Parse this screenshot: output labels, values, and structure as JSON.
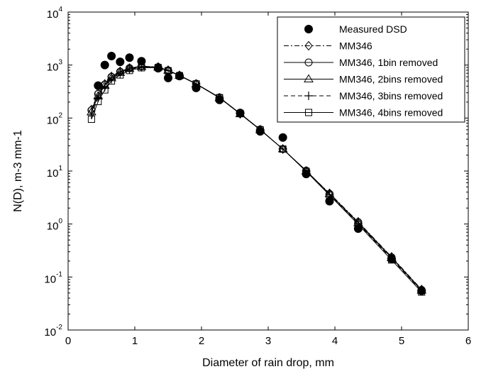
{
  "chart_data": {
    "type": "line",
    "xlabel": "Diameter of rain drop, mm",
    "ylabel": "N(D), m-3 mm-1",
    "xlim": [
      0,
      6
    ],
    "ylim": [
      0.01,
      10000
    ],
    "yscale": "log",
    "grid": false,
    "legend_position": "top-right",
    "x_ticks": [
      "0",
      "1",
      "2",
      "3",
      "4",
      "5",
      "6"
    ],
    "y_ticks": [
      {
        "value": 0.01,
        "base": "10",
        "exp": "-2"
      },
      {
        "value": 0.1,
        "base": "10",
        "exp": "-1"
      },
      {
        "value": 1,
        "base": "10",
        "exp": "0"
      },
      {
        "value": 10,
        "base": "10",
        "exp": "1"
      },
      {
        "value": 100,
        "base": "10",
        "exp": "2"
      },
      {
        "value": 1000,
        "base": "10",
        "exp": "3"
      },
      {
        "value": 10000,
        "base": "10",
        "exp": "4"
      }
    ],
    "series": [
      {
        "name": "Measured DSD",
        "style": "markers",
        "marker": "filled-circle",
        "points": [
          [
            0.45,
            410
          ],
          [
            0.55,
            1000
          ],
          [
            0.65,
            1480
          ],
          [
            0.78,
            1150
          ],
          [
            0.92,
            1380
          ],
          [
            1.1,
            1180
          ],
          [
            1.35,
            870
          ],
          [
            1.5,
            570
          ],
          [
            1.67,
            620
          ],
          [
            1.92,
            370
          ],
          [
            2.27,
            220
          ],
          [
            2.58,
            125
          ],
          [
            2.88,
            56
          ],
          [
            3.22,
            43
          ],
          [
            3.57,
            8.8
          ],
          [
            3.92,
            2.7
          ],
          [
            4.35,
            0.82
          ],
          [
            4.85,
            0.22
          ],
          [
            5.3,
            0.055
          ]
        ]
      },
      {
        "name": "MM346",
        "style": "dash-dot",
        "marker": "diamond",
        "points": [
          [
            0.35,
            145
          ],
          [
            0.45,
            295
          ],
          [
            0.55,
            440
          ],
          [
            0.65,
            610
          ],
          [
            0.78,
            760
          ],
          [
            0.92,
            880
          ],
          [
            1.1,
            950
          ],
          [
            1.35,
            920
          ],
          [
            1.5,
            800
          ],
          [
            1.67,
            640
          ],
          [
            1.92,
            440
          ],
          [
            2.27,
            240
          ],
          [
            2.58,
            120
          ],
          [
            2.88,
            60
          ],
          [
            3.22,
            26
          ],
          [
            3.57,
            10
          ],
          [
            3.92,
            3.8
          ],
          [
            4.35,
            1.1
          ],
          [
            4.85,
            0.24
          ],
          [
            5.3,
            0.058
          ]
        ]
      },
      {
        "name": "MM346, 1bin removed",
        "style": "solid",
        "marker": "circle",
        "points": [
          [
            0.35,
            140
          ],
          [
            0.45,
            285
          ],
          [
            0.55,
            430
          ],
          [
            0.65,
            600
          ],
          [
            0.78,
            750
          ],
          [
            0.92,
            875
          ],
          [
            1.1,
            945
          ],
          [
            1.35,
            915
          ],
          [
            1.5,
            795
          ],
          [
            1.67,
            640
          ],
          [
            1.92,
            445
          ],
          [
            2.27,
            245
          ],
          [
            2.58,
            122
          ],
          [
            2.88,
            61
          ],
          [
            3.22,
            26
          ],
          [
            3.57,
            10.2
          ],
          [
            3.92,
            3.7
          ],
          [
            4.35,
            1.08
          ],
          [
            4.85,
            0.235
          ],
          [
            5.3,
            0.057
          ]
        ]
      },
      {
        "name": "MM346, 2bins removed",
        "style": "solid",
        "marker": "triangle",
        "points": [
          [
            0.35,
            130
          ],
          [
            0.45,
            260
          ],
          [
            0.55,
            410
          ],
          [
            0.65,
            570
          ],
          [
            0.78,
            720
          ],
          [
            0.92,
            850
          ],
          [
            1.1,
            930
          ],
          [
            1.35,
            910
          ],
          [
            1.5,
            790
          ],
          [
            1.67,
            635
          ],
          [
            1.92,
            440
          ],
          [
            2.27,
            240
          ],
          [
            2.58,
            120
          ],
          [
            2.88,
            60
          ],
          [
            3.22,
            26
          ],
          [
            3.57,
            10
          ],
          [
            3.92,
            3.7
          ],
          [
            4.35,
            1.05
          ],
          [
            4.85,
            0.23
          ],
          [
            5.3,
            0.056
          ]
        ]
      },
      {
        "name": "MM346, 3bins removed",
        "style": "dashed",
        "marker": "plus",
        "points": [
          [
            0.35,
            115
          ],
          [
            0.45,
            240
          ],
          [
            0.55,
            380
          ],
          [
            0.65,
            540
          ],
          [
            0.78,
            690
          ],
          [
            0.92,
            820
          ],
          [
            1.1,
            910
          ],
          [
            1.35,
            900
          ],
          [
            1.5,
            785
          ],
          [
            1.67,
            630
          ],
          [
            1.92,
            440
          ],
          [
            2.27,
            240
          ],
          [
            2.58,
            120
          ],
          [
            2.88,
            60
          ],
          [
            3.22,
            26
          ],
          [
            3.57,
            10
          ],
          [
            3.92,
            3.6
          ],
          [
            4.35,
            1.02
          ],
          [
            4.85,
            0.22
          ],
          [
            5.3,
            0.055
          ]
        ]
      },
      {
        "name": "MM346, 4bins removed",
        "style": "solid",
        "marker": "square",
        "points": [
          [
            0.35,
            95
          ],
          [
            0.45,
            205
          ],
          [
            0.55,
            340
          ],
          [
            0.65,
            500
          ],
          [
            0.78,
            650
          ],
          [
            0.92,
            790
          ],
          [
            1.1,
            890
          ],
          [
            1.35,
            895
          ],
          [
            1.5,
            780
          ],
          [
            1.67,
            630
          ],
          [
            1.92,
            440
          ],
          [
            2.27,
            242
          ],
          [
            2.58,
            121
          ],
          [
            2.88,
            60
          ],
          [
            3.22,
            26
          ],
          [
            3.57,
            9.8
          ],
          [
            3.92,
            3.5
          ],
          [
            4.35,
            0.98
          ],
          [
            4.85,
            0.21
          ],
          [
            5.3,
            0.052
          ]
        ]
      }
    ]
  }
}
